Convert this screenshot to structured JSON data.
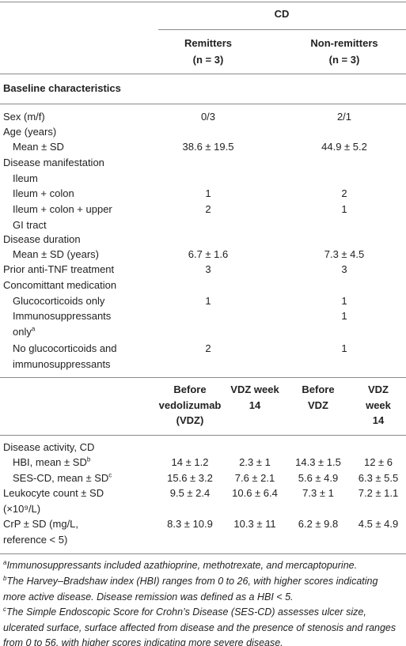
{
  "top": {
    "group": "CD",
    "columns": [
      {
        "name": "Remitters",
        "n": "(n = 3)"
      },
      {
        "name": "Non-remitters",
        "n": "(n = 3)"
      }
    ],
    "section_title": "Baseline characteristics",
    "rows": [
      {
        "label": "Sex (m/f)",
        "values": [
          "0/3",
          "2/1"
        ]
      },
      {
        "label": "Age (years)"
      },
      {
        "label": "Mean ± SD",
        "values": [
          "38.6 ± 19.5",
          "44.9 ± 5.2"
        ]
      },
      {
        "label": "Disease manifestation"
      },
      {
        "label": "Ileum"
      },
      {
        "label": "Ileum + colon",
        "values": [
          "1",
          "2"
        ]
      },
      {
        "label": "Ileum + colon + upper GI tract",
        "values": [
          "2",
          "1"
        ]
      },
      {
        "label": "Disease duration"
      },
      {
        "label": "Mean ± SD (years)",
        "values": [
          "6.7 ± 1.6",
          "7.3 ± 4.5"
        ]
      },
      {
        "label": "Prior anti-TNF treatment",
        "values": [
          "3",
          "3"
        ]
      },
      {
        "label": "Concomittant medication"
      },
      {
        "label": "Glucocorticoids only",
        "values": [
          "1",
          "1"
        ]
      },
      {
        "label": "Immunosuppressants only",
        "note": "a",
        "values": [
          null,
          "1"
        ]
      },
      {
        "label": "No glucocorticoids and immunosuppressants",
        "values": [
          "2",
          "1"
        ]
      }
    ]
  },
  "bottom": {
    "columns": [
      "Before vedolizumab (VDZ)",
      "VDZ week 14",
      "Before VDZ",
      "VDZ week 14"
    ],
    "rows": [
      {
        "label": "Disease activity, CD"
      },
      {
        "label": "HBI, mean ± SD",
        "note": "b",
        "values": [
          "14 ± 1.2",
          "2.3 ± 1",
          "14.3 ± 1.5",
          "12 ± 6"
        ]
      },
      {
        "label": "SES-CD, mean ± SD",
        "note": "c",
        "values": [
          "15.6 ± 3.2",
          "7.6 ± 2.1",
          "5.6 ± 4.9",
          "6.3 ± 5.5"
        ]
      },
      {
        "label": "Leukocyte count ± SD (×10⁹/L)",
        "values": [
          "9.5 ± 2.4",
          "10.6 ± 6.4",
          "7.3 ± 1",
          "7.2 ± 1.1"
        ]
      },
      {
        "label": "CrP ± SD (mg/L, reference < 5)",
        "values": [
          "8.3 ± 10.9",
          "10.3 ± 11",
          "6.2 ± 9.8",
          "4.5 ± 4.9"
        ]
      }
    ]
  },
  "footnotes": [
    {
      "mark": "a",
      "text": "Immunosuppressants included azathioprine, methotrexate, and mercaptopurine."
    },
    {
      "mark": "b",
      "text": "The Harvey–Bradshaw index (HBI) ranges from 0 to 26, with higher scores indicating more active disease. Disease remission was defined as a HBI < 5."
    },
    {
      "mark": "c",
      "text": "The Simple Endoscopic Score for Crohn’s Disease (SES-CD) assesses ulcer size, ulcerated surface, surface affected from disease and the presence of stenosis and ranges from 0 to 56, with higher scores indicating more severe disease."
    }
  ]
}
